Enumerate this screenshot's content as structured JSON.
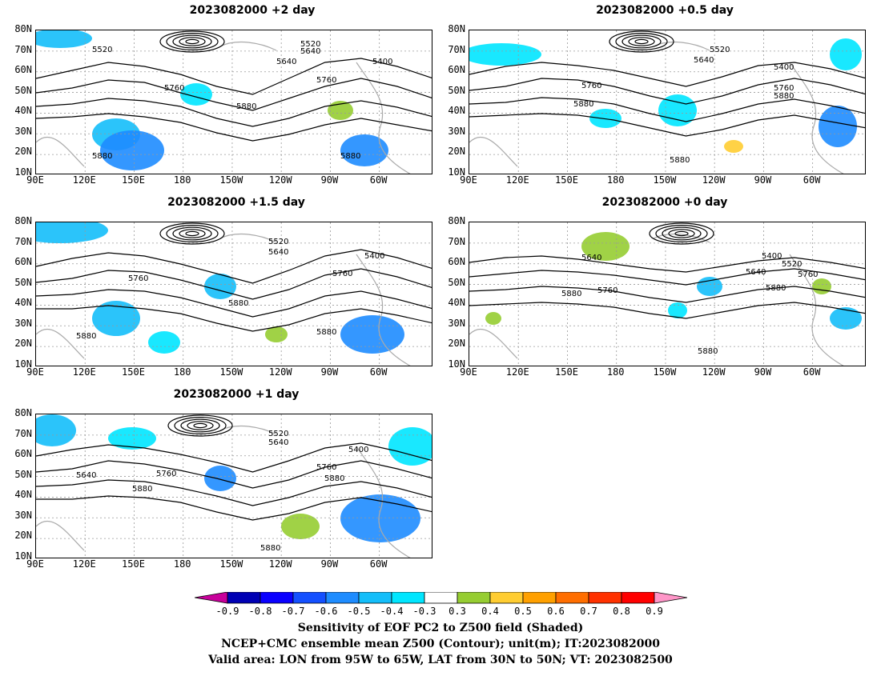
{
  "panels": [
    {
      "title": "2023082000 +2 day"
    },
    {
      "title": "2023082000 +0.5 day"
    },
    {
      "title": "2023082000 +1.5 day"
    },
    {
      "title": "2023082000 +0 day"
    },
    {
      "title": "2023082000 +1 day"
    }
  ],
  "lat_labels": [
    "80N",
    "70N",
    "60N",
    "50N",
    "40N",
    "30N",
    "20N",
    "10N"
  ],
  "lon_labels": [
    "90E",
    "120E",
    "150E",
    "180",
    "150W",
    "120W",
    "90W",
    "60W"
  ],
  "contour_labels": {
    "p0": [
      "5520",
      "5640",
      "5520",
      "5400",
      "5760",
      "5640",
      "5760",
      "5880",
      "5880",
      "5880"
    ],
    "p1": [
      "5520",
      "5640",
      "5400",
      "5760",
      "5880",
      "5760",
      "5880",
      "5880"
    ],
    "p2": [
      "5520",
      "5640",
      "5400",
      "5760",
      "5760",
      "5880",
      "5880",
      "5880"
    ],
    "p3": [
      "5640",
      "5400",
      "5520",
      "5640",
      "5760",
      "5880",
      "5760",
      "5880",
      "5880"
    ],
    "p4": [
      "5520",
      "5640",
      "5400",
      "5640",
      "5760",
      "5760",
      "5880",
      "5880",
      "5880"
    ]
  },
  "colorbar": {
    "ticks": [
      "-0.9",
      "-0.8",
      "-0.7",
      "-0.6",
      "-0.5",
      "-0.4",
      "-0.3",
      "0.3",
      "0.4",
      "0.5",
      "0.6",
      "0.7",
      "0.8",
      "0.9"
    ],
    "colors": [
      "#c8009b",
      "#0000b4",
      "#0a00ff",
      "#1450ff",
      "#1e8cff",
      "#14befa",
      "#00e6ff",
      "#ffffff",
      "#96cd32",
      "#ffcd32",
      "#ffa000",
      "#ff6e00",
      "#ff3200",
      "#ff0000",
      "#ff96c8"
    ]
  },
  "caption": {
    "line1": "Sensitivity of EOF PC2 to Z500 field (Shaded)",
    "line2": "NCEP+CMC ensemble mean Z500 (Contour); unit(m); IT:2023082000",
    "line3": "Valid area: LON from 95W to 65W, LAT from 30N to 50N; VT: 2023082500"
  }
}
